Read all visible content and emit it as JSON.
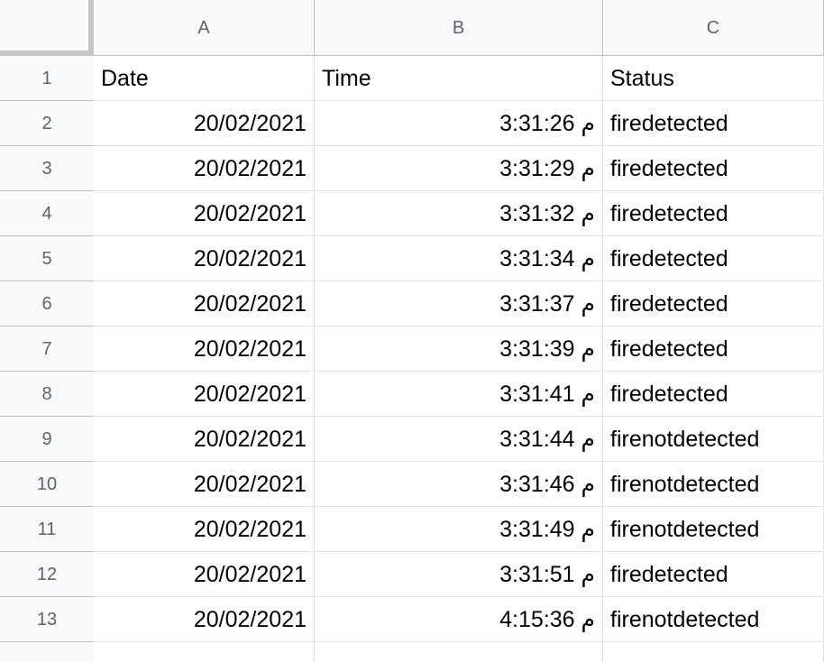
{
  "columns": [
    {
      "letter": "A"
    },
    {
      "letter": "B"
    },
    {
      "letter": "C"
    }
  ],
  "rows": [
    {
      "num": "1",
      "a": "Date",
      "b": "Time",
      "c": "Status",
      "align_a": "left",
      "align_b": "left"
    },
    {
      "num": "2",
      "a": "20/02/2021",
      "b": "3:31:26 م",
      "c": "firedetected"
    },
    {
      "num": "3",
      "a": "20/02/2021",
      "b": "3:31:29 م",
      "c": "firedetected"
    },
    {
      "num": "4",
      "a": "20/02/2021",
      "b": "3:31:32 م",
      "c": "firedetected"
    },
    {
      "num": "5",
      "a": "20/02/2021",
      "b": "3:31:34 م",
      "c": "firedetected"
    },
    {
      "num": "6",
      "a": "20/02/2021",
      "b": "3:31:37 م",
      "c": "firedetected"
    },
    {
      "num": "7",
      "a": "20/02/2021",
      "b": "3:31:39 م",
      "c": "firedetected"
    },
    {
      "num": "8",
      "a": "20/02/2021",
      "b": "3:31:41 م",
      "c": "firedetected"
    },
    {
      "num": "9",
      "a": "20/02/2021",
      "b": "3:31:44 م",
      "c": "firenotdetected"
    },
    {
      "num": "10",
      "a": "20/02/2021",
      "b": "3:31:46 م",
      "c": "firenotdetected"
    },
    {
      "num": "11",
      "a": "20/02/2021",
      "b": "3:31:49 م",
      "c": "firenotdetected"
    },
    {
      "num": "12",
      "a": "20/02/2021",
      "b": "3:31:51 م",
      "c": "firedetected"
    },
    {
      "num": "13",
      "a": "20/02/2021",
      "b": "4:15:36 م",
      "c": "firenotdetected"
    }
  ]
}
